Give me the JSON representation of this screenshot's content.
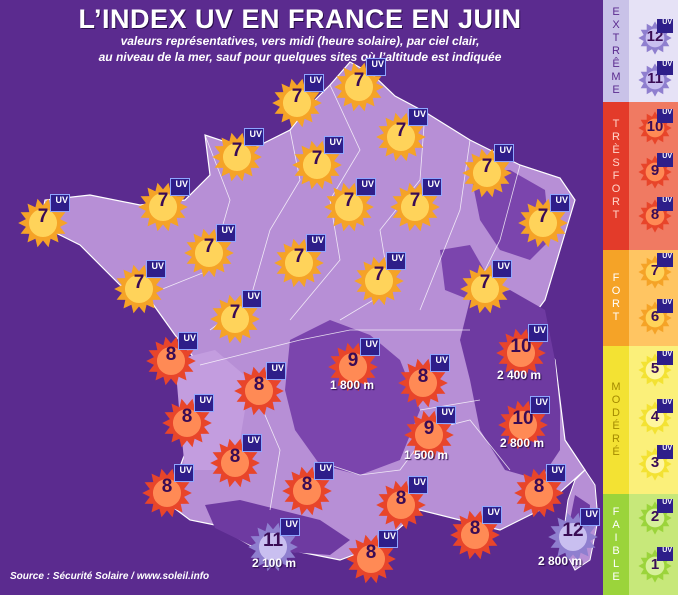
{
  "header": {
    "title": "L’INDEX UV EN FRANCE EN JUIN",
    "subtitle_line1": "valeurs représentatives, vers midi (heure solaire), par ciel clair,",
    "subtitle_line2": "au niveau de la mer, sauf pour quelques sites où l’altitude est indiquée"
  },
  "source": "Source : Sécurité Solaire / www.soleil.info",
  "uv_tag": "UV",
  "colors": {
    "background": "#5b2b8f",
    "land_light": "#b78fd6",
    "land_dark": "#6e3aa1",
    "uv7_sun": "#f5a327",
    "uv8_sun": "#e8452a",
    "uv11_sun": "#8f7fcf"
  },
  "map_markers": [
    {
      "id": "nord",
      "uv": "7"
    },
    {
      "id": "manche-est",
      "uv": "7"
    },
    {
      "id": "ardennes",
      "uv": "7"
    },
    {
      "id": "cotentin",
      "uv": "7"
    },
    {
      "id": "normandie",
      "uv": "7"
    },
    {
      "id": "lorraine",
      "uv": "7"
    },
    {
      "id": "brest",
      "uv": "7"
    },
    {
      "id": "bretagne-nord",
      "uv": "7"
    },
    {
      "id": "paris",
      "uv": "7"
    },
    {
      "id": "champagne",
      "uv": "7"
    },
    {
      "id": "alsace",
      "uv": "7"
    },
    {
      "id": "rennes",
      "uv": "7"
    },
    {
      "id": "centre",
      "uv": "7"
    },
    {
      "id": "nantes",
      "uv": "7"
    },
    {
      "id": "bourgogne",
      "uv": "7"
    },
    {
      "id": "franche-comte",
      "uv": "7"
    },
    {
      "id": "poitou",
      "uv": "7"
    },
    {
      "id": "alpes-nord",
      "uv": "10",
      "altitude": "2 400 m"
    },
    {
      "id": "la-rochelle",
      "uv": "8"
    },
    {
      "id": "massif-central",
      "uv": "9",
      "altitude": "1 800 m"
    },
    {
      "id": "limousin",
      "uv": "8"
    },
    {
      "id": "lyon",
      "uv": "8"
    },
    {
      "id": "bordeaux",
      "uv": "8"
    },
    {
      "id": "cevennes",
      "uv": "9",
      "altitude": "1 500 m"
    },
    {
      "id": "alpes-sud",
      "uv": "10",
      "altitude": "2 800 m"
    },
    {
      "id": "landes",
      "uv": "8"
    },
    {
      "id": "toulouse",
      "uv": "8"
    },
    {
      "id": "biarritz",
      "uv": "8"
    },
    {
      "id": "montpellier",
      "uv": "8"
    },
    {
      "id": "nice",
      "uv": "8"
    },
    {
      "id": "marseille",
      "uv": "8"
    },
    {
      "id": "corse",
      "uv": "12",
      "altitude": "2 800 m"
    },
    {
      "id": "pyrenees",
      "uv": "11",
      "altitude": "2 100 m"
    },
    {
      "id": "perpignan",
      "uv": "8"
    }
  ],
  "legend": {
    "bands": [
      {
        "label": "EXTRÊME",
        "values": [
          "12",
          "11"
        ]
      },
      {
        "label": "TRÈS FORT",
        "values": [
          "10",
          "9",
          "8"
        ]
      },
      {
        "label": "FORT",
        "values": [
          "7",
          "6"
        ]
      },
      {
        "label": "MODÉRÉ",
        "values": [
          "5",
          "4",
          "3"
        ]
      },
      {
        "label": "FAIBLE",
        "values": [
          "2",
          "1"
        ]
      }
    ]
  }
}
